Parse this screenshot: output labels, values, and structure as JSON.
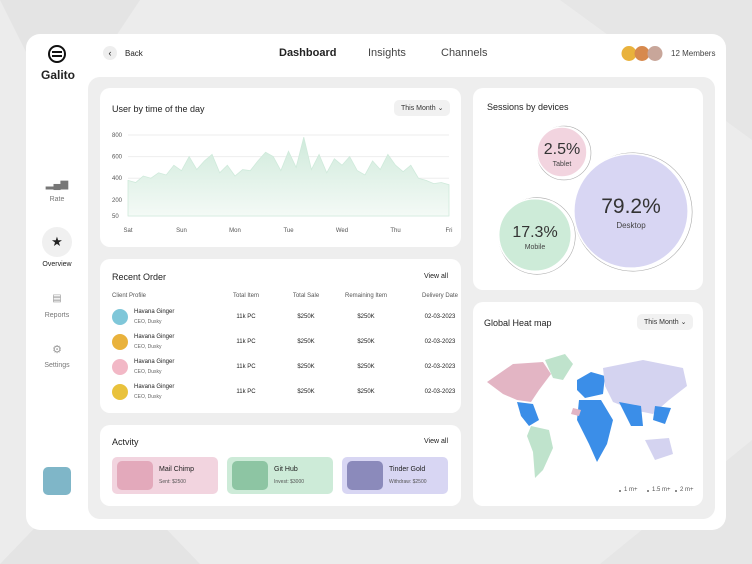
{
  "brand": "Galito",
  "nav": {
    "back": "Back",
    "tabs": [
      "Dashboard",
      "Insights",
      "Channels"
    ],
    "members": "12 Members"
  },
  "sidebar": [
    "Rate",
    "Overview",
    "Reports",
    "Settings"
  ],
  "user_chart": {
    "filter": "This Month"
  },
  "recent_order": {
    "title": "Recent Order",
    "view_all": "View all",
    "headers": [
      "Client Profile",
      "Total Item",
      "Total Sale",
      "Remaining Item",
      "Delivery Date"
    ],
    "rows": [
      {
        "name": "Havana Ginger",
        "role": "CEO, Dusky",
        "total_item": "11k PC",
        "total_sale": "$250K",
        "remaining": "$250K",
        "date": "02-03-2023"
      },
      {
        "name": "Havana Ginger",
        "role": "CEO, Dusky",
        "total_item": "11k PC",
        "total_sale": "$250K",
        "remaining": "$250K",
        "date": "02-03-2023"
      },
      {
        "name": "Havana Ginger",
        "role": "CEO, Dusky",
        "total_item": "11k PC",
        "total_sale": "$250K",
        "remaining": "$250K",
        "date": "02-03-2023"
      },
      {
        "name": "Havana Ginger",
        "role": "CEO, Dusky",
        "total_item": "11k PC",
        "total_sale": "$250K",
        "remaining": "$250K",
        "date": "02-03-2023"
      }
    ]
  },
  "activity": {
    "title": "Actvity",
    "view_all": "View all",
    "cards": [
      {
        "name": "Mail Chimp",
        "detail": "Sent: $2500"
      },
      {
        "name": "Git Hub",
        "detail": "Invest: $3000"
      },
      {
        "name": "Tinder Gold",
        "detail": "Withdraw: $2500"
      }
    ]
  },
  "heat_map": {
    "title": "Global Heat map",
    "filter": "This Month",
    "legend": [
      "1 m+",
      "1.5 m+",
      "2 m+"
    ]
  },
  "chart_data": [
    {
      "type": "area",
      "title": "User by time of the day",
      "color": "#cfeadb",
      "x": [
        0,
        1,
        2,
        3,
        4,
        5,
        6,
        7,
        8,
        9,
        10,
        11,
        12,
        13,
        14,
        15,
        16,
        17,
        18,
        19,
        20,
        21,
        22,
        23,
        24,
        25,
        26,
        27,
        28,
        29,
        30,
        31,
        32,
        33,
        34,
        35,
        36,
        37,
        38,
        39,
        40,
        41,
        42
      ],
      "values": [
        380,
        360,
        420,
        400,
        450,
        430,
        520,
        470,
        600,
        480,
        560,
        620,
        450,
        520,
        420,
        480,
        470,
        560,
        640,
        600,
        470,
        650,
        500,
        780,
        480,
        620,
        450,
        580,
        520,
        600,
        470,
        430,
        560,
        480,
        620,
        520,
        460,
        520,
        400,
        380,
        350,
        360,
        340
      ],
      "xlim": [
        0,
        42
      ],
      "xticks": [
        {
          "value": 0,
          "label": "Sat"
        },
        {
          "value": 7,
          "label": "Sun"
        },
        {
          "value": 14,
          "label": "Mon"
        },
        {
          "value": 21,
          "label": "Tue"
        },
        {
          "value": 28,
          "label": "Wed"
        },
        {
          "value": 35,
          "label": "Thu"
        },
        {
          "value": 42,
          "label": "Fri"
        }
      ],
      "ylim": [
        50,
        800
      ],
      "yticks": [
        50,
        200,
        400,
        600,
        800
      ],
      "grid": true
    },
    {
      "type": "bubble",
      "title": "Sessions by devices",
      "categories": [
        "Tablet",
        "Mobile",
        "Desktop"
      ],
      "values": [
        2.5,
        17.3,
        79.2
      ],
      "value_labels": [
        "2.5%",
        "17.3%",
        "79.2%"
      ],
      "colors": [
        "#f2d4df",
        "#cdebd8",
        "#d8d6f3"
      ]
    }
  ]
}
